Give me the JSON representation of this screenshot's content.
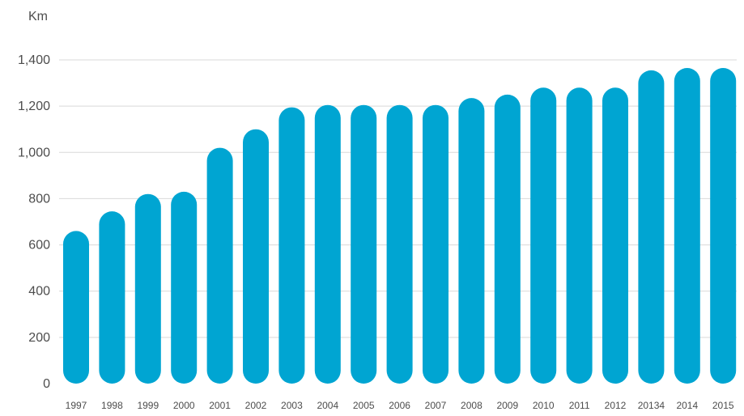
{
  "chart_data": {
    "type": "bar",
    "title": "",
    "xlabel": "",
    "ylabel": "Km",
    "ylim": [
      0,
      1400
    ],
    "yticks": [
      0,
      200,
      400,
      600,
      800,
      1000,
      1200,
      1400
    ],
    "ytick_labels": [
      "0",
      "200",
      "400",
      "600",
      "800",
      "1,000",
      "1,200",
      "1,400"
    ],
    "grid": true,
    "legend": "none",
    "bar_style": "rounded",
    "color": "#00a5d2",
    "categories": [
      "1997",
      "1998",
      "1999",
      "2000",
      "2001",
      "2002",
      "2003",
      "2004",
      "2005",
      "2006",
      "2007",
      "2008",
      "2009",
      "2010",
      "2011",
      "2012",
      "20134",
      "2014",
      "2015"
    ],
    "values": [
      660,
      745,
      820,
      830,
      1020,
      1100,
      1195,
      1205,
      1205,
      1205,
      1205,
      1235,
      1250,
      1280,
      1280,
      1280,
      1355,
      1365,
      1365
    ]
  }
}
